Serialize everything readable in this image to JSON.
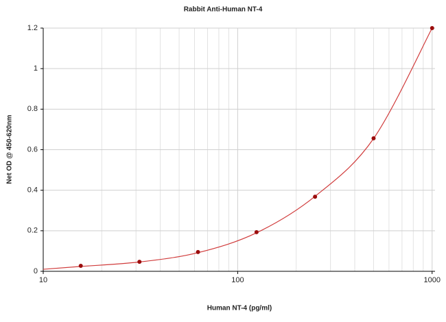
{
  "chart_data": {
    "type": "scatter",
    "title": "Rabbit Anti-Human NT-4",
    "x_label": "Human NT-4 (pg/ml)",
    "y_label": "Net OD @ 450-620nm",
    "x": [
      15.6,
      31.25,
      62.5,
      125,
      250,
      500,
      1000
    ],
    "values": [
      0.027,
      0.047,
      0.095,
      0.193,
      0.368,
      0.656,
      1.2
    ],
    "color": "#9b0d0d",
    "fit": {
      "x": [
        10,
        15.6,
        31.25,
        62.5,
        125,
        250,
        500,
        1000
      ],
      "values": [
        0.01,
        0.024,
        0.046,
        0.092,
        0.19,
        0.37,
        0.655,
        1.2
      ],
      "color": "#d03a3a"
    },
    "xlog": true,
    "xlim": [
      10,
      1035
    ],
    "xticks": [
      10,
      100,
      1000
    ],
    "xminorticks": [
      20,
      30,
      40,
      50,
      60,
      70,
      80,
      90,
      200,
      300,
      400,
      500,
      600,
      700,
      800,
      900
    ],
    "ylim": [
      0,
      1.2
    ],
    "yticks": [
      0,
      0.2,
      0.4,
      0.6,
      0.8,
      1,
      1.2
    ],
    "grid": true
  }
}
